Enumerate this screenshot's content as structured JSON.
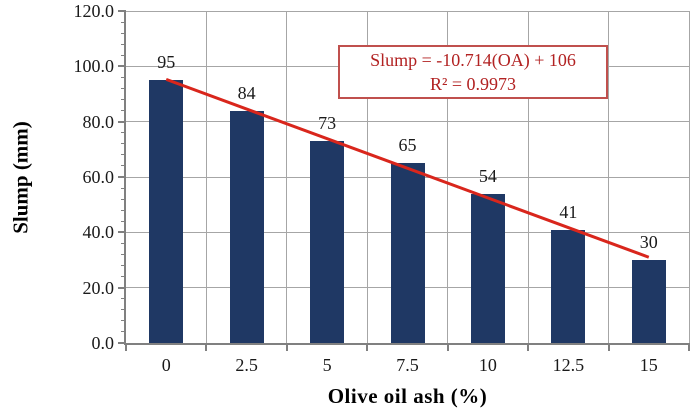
{
  "chart_data": {
    "type": "bar",
    "title": "",
    "xlabel": "Olive oil ash  (%)",
    "ylabel": "Slump (mm)",
    "categories": [
      "0",
      "2.5",
      "5",
      "7.5",
      "10",
      "12.5",
      "15"
    ],
    "values": [
      95,
      84,
      73,
      65,
      54,
      41,
      30
    ],
    "ylim": [
      0,
      120
    ],
    "y_major_step": 20,
    "y_minor_step": 4,
    "y_tick_labels": [
      "0.0",
      "20.0",
      "40.0",
      "60.0",
      "80.0",
      "100.0",
      "120.0"
    ],
    "grid": true,
    "legend": "none",
    "bar_color": "#1f3864",
    "grid_color": "#a6a6a6",
    "axis_color": "#808080",
    "trendline": {
      "color": "#d9261c",
      "slope": -10.714,
      "intercept": 106,
      "equation": "Slump  = -10.714(OA) + 106",
      "r_squared": "R² = 0.9973",
      "text_color": "#b22222",
      "border_color": "#c0504d"
    }
  }
}
